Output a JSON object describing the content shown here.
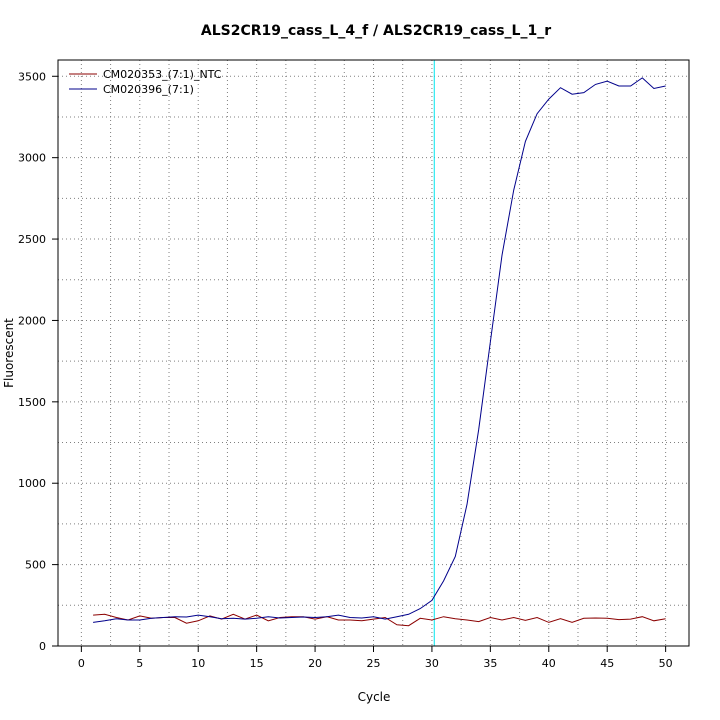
{
  "chart_data": {
    "type": "line",
    "title": "ALS2CR19_cass_L_4_f / ALS2CR19_cass_L_1_r",
    "xlabel": "Cycle",
    "ylabel": "Fluorescent",
    "xlim": [
      -2,
      52
    ],
    "ylim": [
      0,
      3600
    ],
    "xticks": [
      0,
      5,
      10,
      15,
      20,
      25,
      30,
      35,
      40,
      45,
      50
    ],
    "yticks": [
      0,
      500,
      1000,
      1500,
      2000,
      2500,
      3000,
      3500
    ],
    "grid": "dotted, major and minor",
    "legend_position": "top-left",
    "threshold_line": {
      "x": 30.2,
      "color": "#00e5ee"
    },
    "series": [
      {
        "name": "CM020353_(7:1)_NTC",
        "color": "#8b0000",
        "x": [
          1,
          2,
          3,
          4,
          5,
          6,
          7,
          8,
          9,
          10,
          11,
          12,
          13,
          14,
          15,
          16,
          17,
          18,
          19,
          20,
          21,
          22,
          23,
          24,
          25,
          26,
          27,
          28,
          29,
          30,
          31,
          32,
          33,
          34,
          35,
          36,
          37,
          38,
          39,
          40,
          41,
          42,
          43,
          44,
          45,
          46,
          47,
          48,
          49,
          50
        ],
        "values": [
          190,
          195,
          175,
          160,
          185,
          170,
          175,
          175,
          140,
          155,
          185,
          165,
          195,
          165,
          190,
          155,
          175,
          180,
          180,
          165,
          180,
          160,
          160,
          155,
          165,
          175,
          130,
          125,
          170,
          160,
          180,
          168,
          160,
          150,
          175,
          160,
          175,
          158,
          175,
          145,
          168,
          145,
          170,
          172,
          170,
          162,
          165,
          180,
          155,
          168
        ]
      },
      {
        "name": "CM020396_(7:1)",
        "color": "#00008b",
        "x": [
          1,
          2,
          3,
          4,
          5,
          6,
          7,
          8,
          9,
          10,
          11,
          12,
          13,
          14,
          15,
          16,
          17,
          18,
          19,
          20,
          21,
          22,
          23,
          24,
          25,
          26,
          27,
          28,
          29,
          30,
          31,
          32,
          33,
          34,
          35,
          36,
          37,
          38,
          39,
          40,
          41,
          42,
          43,
          44,
          45,
          46,
          47,
          48,
          49,
          50
        ],
        "values": [
          145,
          155,
          168,
          160,
          160,
          170,
          175,
          180,
          178,
          190,
          180,
          168,
          170,
          165,
          170,
          180,
          172,
          175,
          178,
          175,
          180,
          190,
          175,
          172,
          180,
          165,
          180,
          195,
          230,
          280,
          400,
          550,
          870,
          1330,
          1870,
          2400,
          2800,
          3100,
          3270,
          3360,
          3430,
          3390,
          3400,
          3450,
          3470,
          3440,
          3440,
          3490,
          3425,
          3440
        ]
      }
    ]
  }
}
